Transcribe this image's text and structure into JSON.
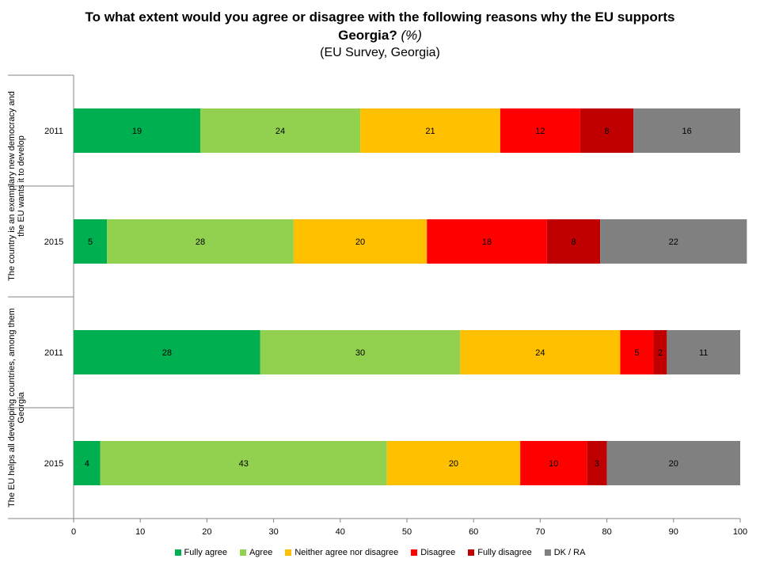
{
  "title": {
    "line1": "To what extent would you agree or disagree with the following reasons why the EU supports",
    "line2_bold": "Georgia?",
    "line2_italic": "(%)",
    "line3": "(EU Survey, Georgia)"
  },
  "chart_data": {
    "type": "bar",
    "orientation": "horizontal",
    "stacked": true,
    "xlim": [
      0,
      100
    ],
    "xticks": [
      0,
      10,
      20,
      30,
      40,
      50,
      60,
      70,
      80,
      90,
      100
    ],
    "grid": false,
    "legend_position": "bottom",
    "groups": [
      {
        "label": "The country is an exemplary new democracy and the EU wants it to develop",
        "categories": [
          "2011",
          "2015"
        ]
      },
      {
        "label": "The EU helps all developing countries, among them Georgia",
        "categories": [
          "2011",
          "2015"
        ]
      }
    ],
    "rows": [
      {
        "group": 0,
        "year": "2011",
        "values": [
          19,
          24,
          21,
          12,
          8,
          16
        ]
      },
      {
        "group": 0,
        "year": "2015",
        "values": [
          5,
          28,
          20,
          18,
          8,
          22
        ]
      },
      {
        "group": 1,
        "year": "2011",
        "values": [
          28,
          30,
          24,
          5,
          2,
          11
        ]
      },
      {
        "group": 1,
        "year": "2015",
        "values": [
          4,
          43,
          20,
          10,
          3,
          20
        ]
      }
    ],
    "series": [
      {
        "name": "Fully agree",
        "color": "#00b050"
      },
      {
        "name": "Agree",
        "color": "#92d050"
      },
      {
        "name": "Neither agree nor disagree",
        "color": "#ffc000"
      },
      {
        "name": "Disagree",
        "color": "#ff0000"
      },
      {
        "name": "Fully disagree",
        "color": "#c00000"
      },
      {
        "name": "DK / RA",
        "color": "#808080"
      }
    ]
  }
}
